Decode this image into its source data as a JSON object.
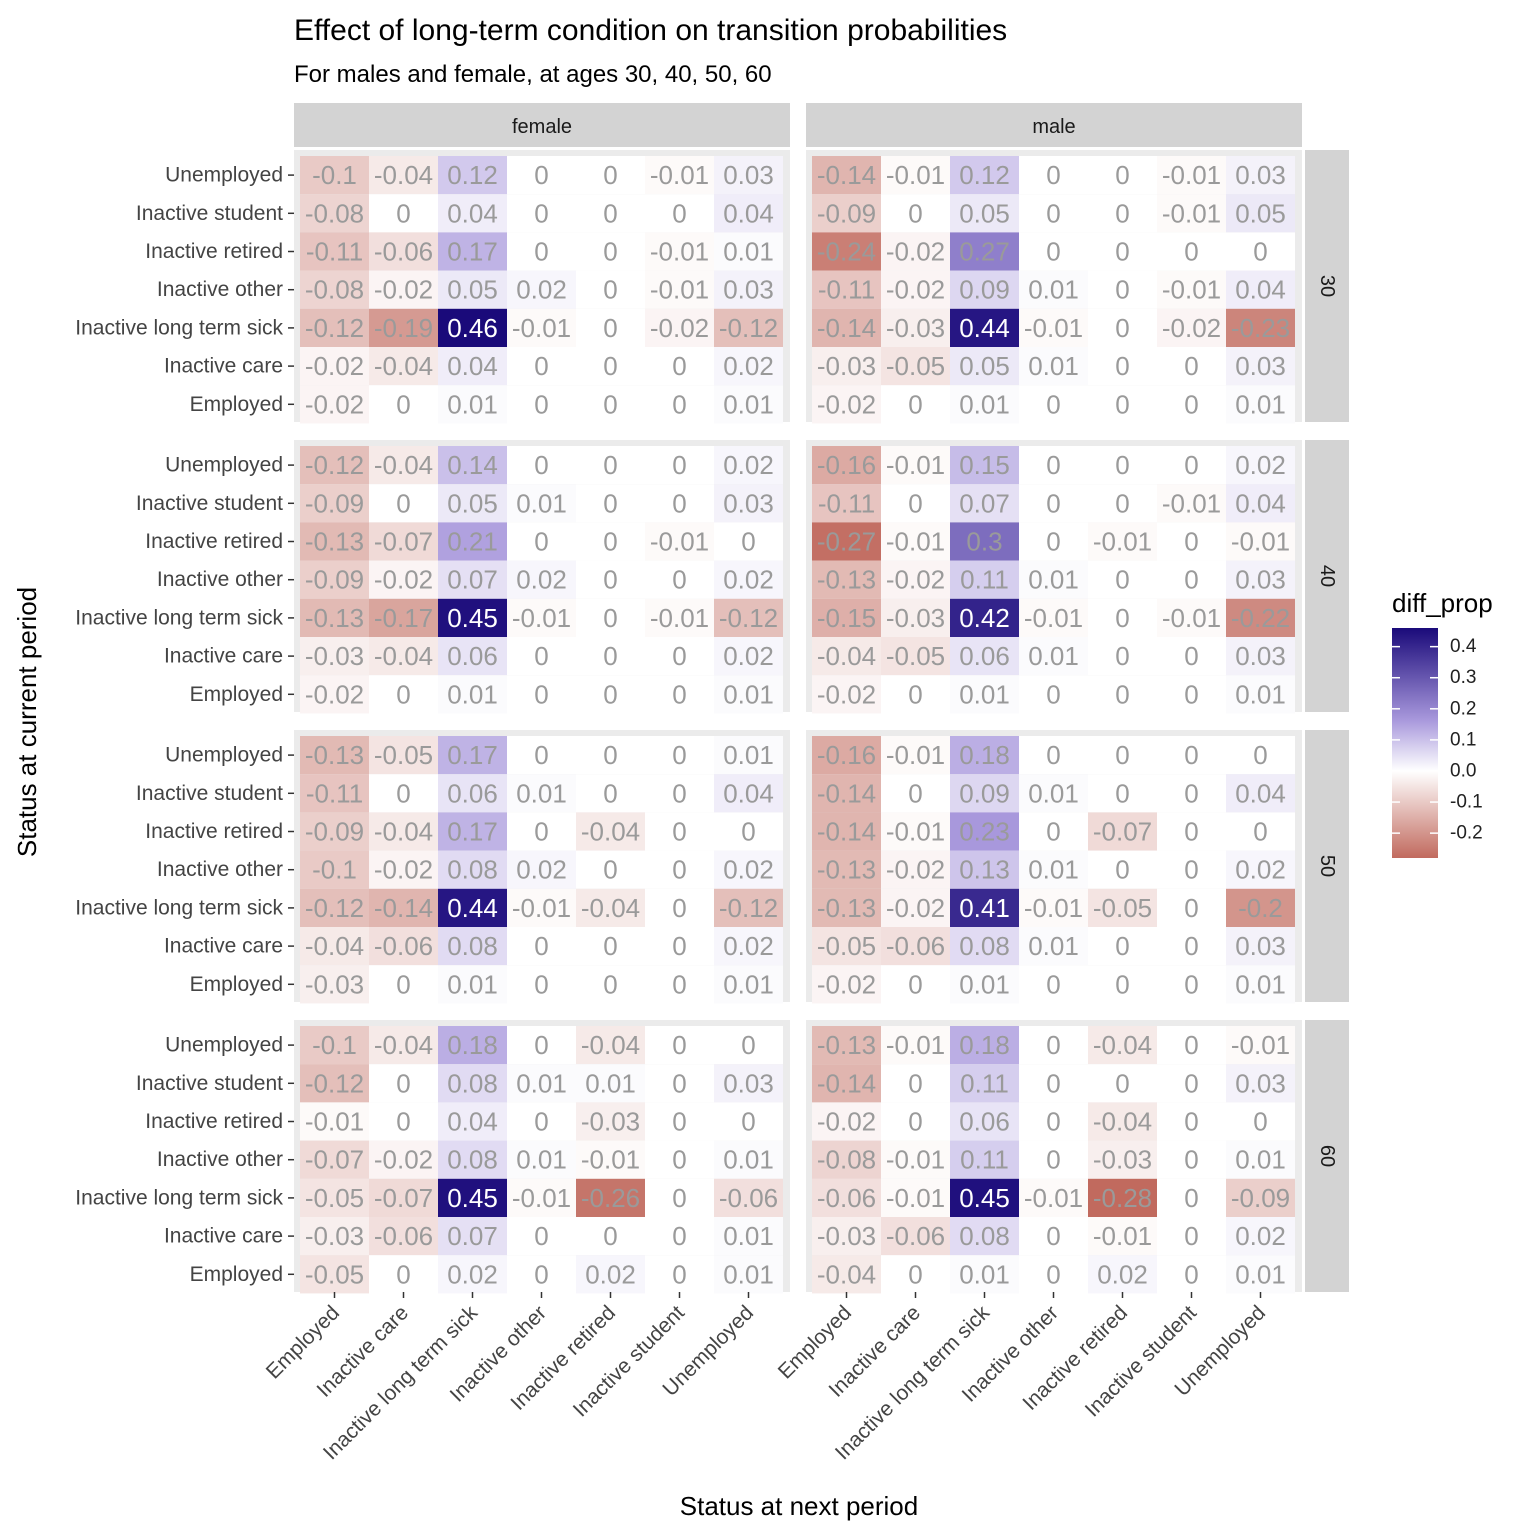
{
  "chart_data": {
    "type": "heatmap",
    "title": "Effect of long-term condition on transition probabilities",
    "subtitle": "For males and female, at ages 30, 40, 50, 60",
    "xlabel": "Status at next period",
    "ylabel": "Status at current period",
    "x_categories": [
      "Employed",
      "Inactive care",
      "Inactive long term sick",
      "Inactive other",
      "Inactive retired",
      "Inactive student",
      "Unemployed"
    ],
    "y_categories": [
      "Unemployed",
      "Inactive student",
      "Inactive retired",
      "Inactive other",
      "Inactive long term sick",
      "Inactive care",
      "Employed"
    ],
    "facet_columns": [
      "female",
      "male"
    ],
    "facet_rows": [
      "30",
      "40",
      "50",
      "60"
    ],
    "legend": {
      "title": "diff_prop",
      "placement": "right",
      "ticks": [
        0.4,
        0.3,
        0.2,
        0.1,
        0.0,
        -0.1,
        -0.2
      ],
      "tick_labels": [
        "0.4",
        "0.3",
        "0.2",
        "0.1",
        "0.0",
        "-0.1",
        "-0.2"
      ],
      "range": [
        -0.28,
        0.46
      ]
    },
    "colors": {
      "low": "#b2182b",
      "mid": "#ffffff",
      "high": "#1a0a7a",
      "strip": "#d3d3d3",
      "panel": "#ebebeb",
      "label": "#9a9a9a"
    },
    "panels": [
      {
        "sex": "female",
        "age": "30",
        "values": [
          [
            -0.1,
            -0.04,
            0.12,
            0,
            0,
            -0.01,
            0.03
          ],
          [
            -0.08,
            0,
            0.04,
            0,
            0,
            0,
            0.04
          ],
          [
            -0.11,
            -0.06,
            0.17,
            0,
            0,
            -0.01,
            0.01
          ],
          [
            -0.08,
            -0.02,
            0.05,
            0.02,
            0,
            -0.01,
            0.03
          ],
          [
            -0.12,
            -0.19,
            0.46,
            -0.01,
            0,
            -0.02,
            -0.12
          ],
          [
            -0.02,
            -0.04,
            0.04,
            0,
            0,
            0,
            0.02
          ],
          [
            -0.02,
            0,
            0.01,
            0,
            0,
            0,
            0.01
          ]
        ]
      },
      {
        "sex": "male",
        "age": "30",
        "values": [
          [
            -0.14,
            -0.01,
            0.12,
            0,
            0,
            -0.01,
            0.03
          ],
          [
            -0.09,
            0,
            0.05,
            0,
            0,
            -0.01,
            0.05
          ],
          [
            -0.24,
            -0.02,
            0.27,
            0,
            0,
            0,
            0
          ],
          [
            -0.11,
            -0.02,
            0.09,
            0.01,
            0,
            -0.01,
            0.04
          ],
          [
            -0.14,
            -0.03,
            0.44,
            -0.01,
            0,
            -0.02,
            -0.23
          ],
          [
            -0.03,
            -0.05,
            0.05,
            0.01,
            0,
            0,
            0.03
          ],
          [
            -0.02,
            0,
            0.01,
            0,
            0,
            0,
            0.01
          ]
        ]
      },
      {
        "sex": "female",
        "age": "40",
        "values": [
          [
            -0.12,
            -0.04,
            0.14,
            0,
            0,
            0,
            0.02
          ],
          [
            -0.09,
            0,
            0.05,
            0.01,
            0,
            0,
            0.03
          ],
          [
            -0.13,
            -0.07,
            0.21,
            0,
            0,
            -0.01,
            0
          ],
          [
            -0.09,
            -0.02,
            0.07,
            0.02,
            0,
            0,
            0.02
          ],
          [
            -0.13,
            -0.17,
            0.45,
            -0.01,
            0,
            -0.01,
            -0.12
          ],
          [
            -0.03,
            -0.04,
            0.06,
            0,
            0,
            0,
            0.02
          ],
          [
            -0.02,
            0,
            0.01,
            0,
            0,
            0,
            0.01
          ]
        ]
      },
      {
        "sex": "male",
        "age": "40",
        "values": [
          [
            -0.16,
            -0.01,
            0.15,
            0,
            0,
            0,
            0.02
          ],
          [
            -0.11,
            0,
            0.07,
            0,
            0,
            -0.01,
            0.04
          ],
          [
            -0.27,
            -0.01,
            0.3,
            0,
            -0.01,
            0,
            -0.01
          ],
          [
            -0.13,
            -0.02,
            0.11,
            0.01,
            0,
            0,
            0.03
          ],
          [
            -0.15,
            -0.03,
            0.42,
            -0.01,
            0,
            -0.01,
            -0.22
          ],
          [
            -0.04,
            -0.05,
            0.06,
            0.01,
            0,
            0,
            0.03
          ],
          [
            -0.02,
            0,
            0.01,
            0,
            0,
            0,
            0.01
          ]
        ]
      },
      {
        "sex": "female",
        "age": "50",
        "values": [
          [
            -0.13,
            -0.05,
            0.17,
            0,
            0,
            0,
            0.01
          ],
          [
            -0.11,
            0,
            0.06,
            0.01,
            0,
            0,
            0.04
          ],
          [
            -0.09,
            -0.04,
            0.17,
            0,
            -0.04,
            0,
            0
          ],
          [
            -0.1,
            -0.02,
            0.08,
            0.02,
            0,
            0,
            0.02
          ],
          [
            -0.12,
            -0.14,
            0.44,
            -0.01,
            -0.04,
            0,
            -0.12
          ],
          [
            -0.04,
            -0.06,
            0.08,
            0,
            0,
            0,
            0.02
          ],
          [
            -0.03,
            0,
            0.01,
            0,
            0,
            0,
            0.01
          ]
        ]
      },
      {
        "sex": "male",
        "age": "50",
        "values": [
          [
            -0.16,
            -0.01,
            0.18,
            0,
            0,
            0,
            0
          ],
          [
            -0.14,
            0,
            0.09,
            0.01,
            0,
            0,
            0.04
          ],
          [
            -0.14,
            -0.01,
            0.23,
            0,
            -0.07,
            0,
            0
          ],
          [
            -0.13,
            -0.02,
            0.13,
            0.01,
            0,
            0,
            0.02
          ],
          [
            -0.13,
            -0.02,
            0.41,
            -0.01,
            -0.05,
            0,
            -0.2
          ],
          [
            -0.05,
            -0.06,
            0.08,
            0.01,
            0,
            0,
            0.03
          ],
          [
            -0.02,
            0,
            0.01,
            0,
            0,
            0,
            0.01
          ]
        ]
      },
      {
        "sex": "female",
        "age": "60",
        "values": [
          [
            -0.1,
            -0.04,
            0.18,
            0,
            -0.04,
            0,
            0
          ],
          [
            -0.12,
            0,
            0.08,
            0.01,
            0.01,
            0,
            0.03
          ],
          [
            -0.01,
            0,
            0.04,
            0,
            -0.03,
            0,
            0
          ],
          [
            -0.07,
            -0.02,
            0.08,
            0.01,
            -0.01,
            0,
            0.01
          ],
          [
            -0.05,
            -0.07,
            0.45,
            -0.01,
            -0.26,
            0,
            -0.06
          ],
          [
            -0.03,
            -0.06,
            0.07,
            0,
            0,
            0,
            0.01
          ],
          [
            -0.05,
            0,
            0.02,
            0,
            0.02,
            0,
            0.01
          ]
        ]
      },
      {
        "sex": "male",
        "age": "60",
        "values": [
          [
            -0.13,
            -0.01,
            0.18,
            0,
            -0.04,
            0,
            -0.01
          ],
          [
            -0.14,
            0,
            0.11,
            0,
            0,
            0,
            0.03
          ],
          [
            -0.02,
            0,
            0.06,
            0,
            -0.04,
            0,
            0
          ],
          [
            -0.08,
            -0.01,
            0.11,
            0,
            -0.03,
            0,
            0.01
          ],
          [
            -0.06,
            -0.01,
            0.45,
            -0.01,
            -0.28,
            0,
            -0.09
          ],
          [
            -0.03,
            -0.06,
            0.08,
            0,
            -0.01,
            0,
            0.02
          ],
          [
            -0.04,
            0,
            0.01,
            0,
            0.02,
            0,
            0.01
          ]
        ]
      }
    ]
  }
}
